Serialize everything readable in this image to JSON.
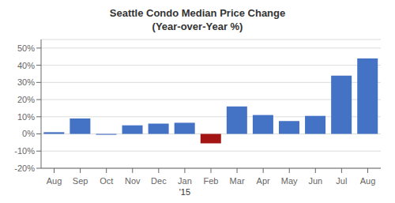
{
  "chart_data": {
    "type": "bar",
    "title": "Seattle Condo Median Price Change",
    "subtitle": "(Year-over-Year %)",
    "categories": [
      "Aug",
      "Sep",
      "Oct",
      "Nov",
      "Dec",
      "Jan",
      "Feb",
      "Mar",
      "Apr",
      "May",
      "Jun",
      "Jul",
      "Aug"
    ],
    "values": [
      1.0,
      9.0,
      -0.5,
      5.0,
      6.0,
      6.5,
      -5.5,
      16.0,
      11.0,
      7.5,
      10.5,
      34.0,
      44.0
    ],
    "colors": [
      "#4472C4",
      "#4472C4",
      "#4472C4",
      "#4472C4",
      "#4472C4",
      "#4472C4",
      "#A31515",
      "#4472C4",
      "#4472C4",
      "#4472C4",
      "#4472C4",
      "#4472C4",
      "#4472C4"
    ],
    "ylim": [
      -20,
      55
    ],
    "yticks": [
      {
        "value": -20,
        "label": "-20%"
      },
      {
        "value": -10,
        "label": "-10%"
      },
      {
        "value": 0,
        "label": "0%"
      },
      {
        "value": 10,
        "label": "10%"
      },
      {
        "value": 20,
        "label": "20%"
      },
      {
        "value": 30,
        "label": "30%"
      },
      {
        "value": 40,
        "label": "40%"
      },
      {
        "value": 50,
        "label": "50%"
      }
    ],
    "annotations": [
      {
        "text": "'15",
        "x": "Jan"
      }
    ],
    "grid": true
  }
}
